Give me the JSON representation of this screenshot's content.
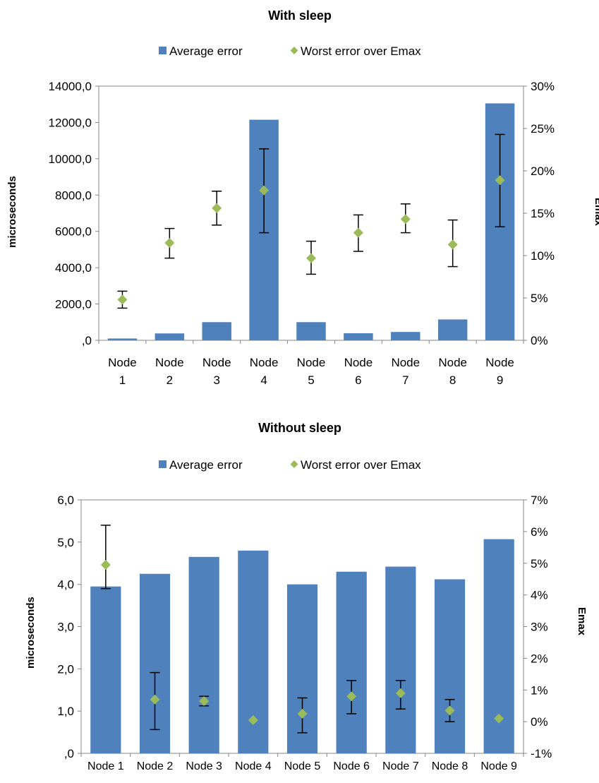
{
  "chart_data": [
    {
      "type": "bar",
      "title": "With sleep",
      "categories": [
        "Node 1",
        "Node 2",
        "Node 3",
        "Node 4",
        "Node 5",
        "Node 6",
        "Node 7",
        "Node 8",
        "Node 9"
      ],
      "ylabel": "microseconds",
      "y2label": "Emax",
      "ylim": [
        0,
        14000
      ],
      "yticks": [
        ",0",
        "2000,0",
        "4000,0",
        "6000,0",
        "8000,0",
        "10000,0",
        "12000,0",
        "14000,0"
      ],
      "y2lim": [
        0,
        30
      ],
      "y2ticks": [
        "0%",
        "5%",
        "10%",
        "15%",
        "20%",
        "25%",
        "30%"
      ],
      "legend_position": "top",
      "series": [
        {
          "name": "Average error",
          "type": "bar",
          "axis": "left",
          "color": "#4f81bd",
          "values": [
            100,
            380,
            1000,
            12150,
            1000,
            390,
            460,
            1150,
            13050
          ]
        },
        {
          "name": "Worst error over Emax",
          "type": "scatter",
          "axis": "right",
          "color": "#9bbb59",
          "marker": "diamond",
          "values": [
            4.8,
            11.5,
            15.6,
            17.7,
            9.7,
            12.7,
            14.3,
            11.3,
            18.9
          ],
          "error_low": [
            3.8,
            9.7,
            13.6,
            12.7,
            7.8,
            10.5,
            12.7,
            8.7,
            13.4
          ],
          "error_high": [
            5.8,
            13.2,
            17.6,
            22.6,
            11.7,
            14.8,
            16.1,
            14.2,
            24.3
          ]
        }
      ]
    },
    {
      "type": "bar",
      "title": "Without sleep",
      "categories": [
        "Node 1",
        "Node 2",
        "Node 3",
        "Node 4",
        "Node 5",
        "Node 6",
        "Node 7",
        "Node 8",
        "Node 9"
      ],
      "ylabel": "microseconds",
      "y2label": "Emax",
      "ylim": [
        0,
        6
      ],
      "yticks": [
        ",0",
        "1,0",
        "2,0",
        "3,0",
        "4,0",
        "5,0",
        "6,0"
      ],
      "y2lim": [
        -1,
        7
      ],
      "y2ticks": [
        "-1%",
        "0%",
        "1%",
        "2%",
        "3%",
        "4%",
        "5%",
        "6%",
        "7%"
      ],
      "legend_position": "top",
      "series": [
        {
          "name": "Average error",
          "type": "bar",
          "axis": "left",
          "color": "#4f81bd",
          "values": [
            3.95,
            4.25,
            4.65,
            4.8,
            4.0,
            4.3,
            4.42,
            4.12,
            5.07
          ]
        },
        {
          "name": "Worst error over Emax",
          "type": "scatter",
          "axis": "right",
          "color": "#9bbb59",
          "marker": "diamond",
          "values": [
            4.95,
            0.7,
            0.65,
            0.05,
            0.25,
            0.8,
            0.9,
            0.35,
            0.1
          ],
          "error_low": [
            4.2,
            -0.25,
            0.5,
            null,
            -0.35,
            0.25,
            0.4,
            0.0,
            null
          ],
          "error_high": [
            6.2,
            1.55,
            0.8,
            null,
            0.75,
            1.3,
            1.3,
            0.7,
            null
          ]
        }
      ]
    }
  ]
}
